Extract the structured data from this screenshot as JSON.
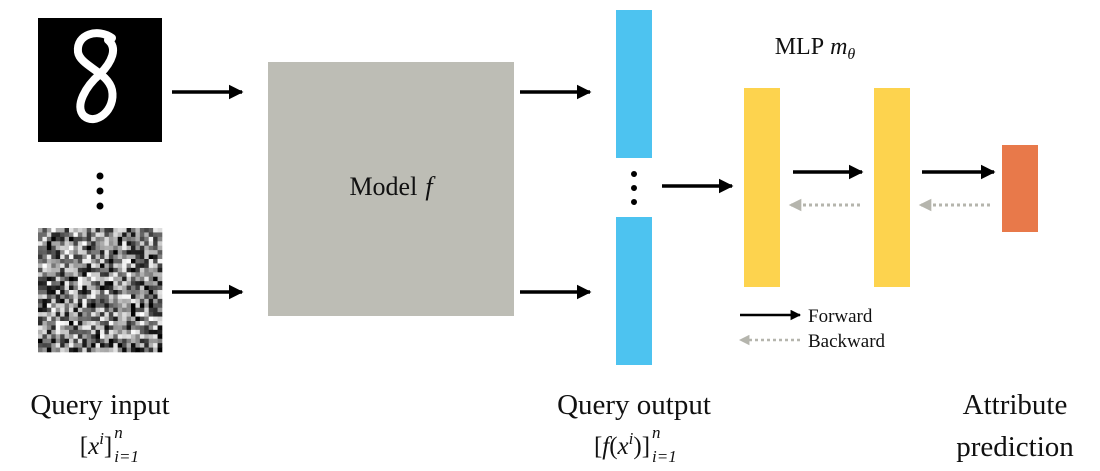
{
  "model_label": {
    "text": "Model",
    "var": "f"
  },
  "mlp_label": {
    "text": "MLP",
    "var": "m",
    "sub": "θ"
  },
  "legend": {
    "forward": "Forward",
    "backward": "Backward"
  },
  "query_input": {
    "title": "Query input",
    "formula": {
      "open": "[",
      "var": "x",
      "sup": "i",
      "close": "]",
      "sub": "i=1",
      "upper": "n"
    }
  },
  "query_output": {
    "title": "Query output",
    "formula": {
      "open": "[",
      "func": "f",
      "lparen": "(",
      "var": "x",
      "sup": "i",
      "rparen": ")",
      "close": "]",
      "sub": "i=1",
      "upper": "n"
    }
  },
  "attribute_prediction": [
    "Attribute",
    "prediction"
  ]
}
